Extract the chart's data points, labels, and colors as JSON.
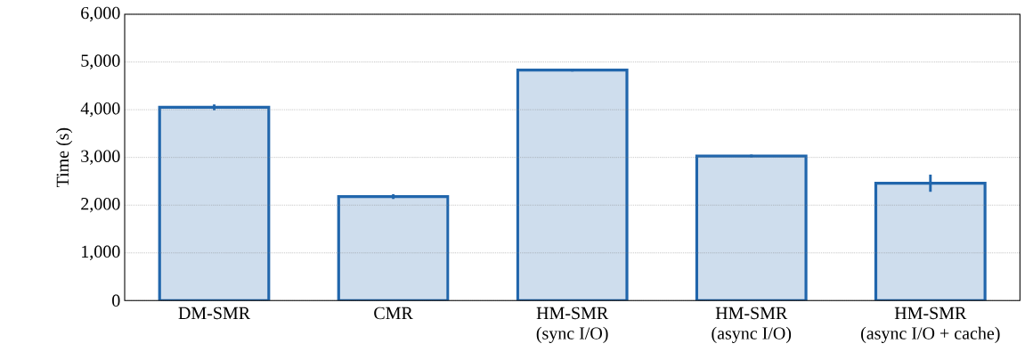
{
  "chart_data": {
    "type": "bar",
    "ylabel": "Time (s)",
    "categories": [
      "DM-SMR",
      "CMR",
      "HM-SMR\n(sync I/O)",
      "HM-SMR\n(async I/O)",
      "HM-SMR\n(async I/O + cache)"
    ],
    "values": [
      4050,
      2180,
      4830,
      3030,
      2460
    ],
    "errors": [
      60,
      50,
      30,
      30,
      180
    ],
    "color": "#2166ac",
    "ylim": [
      0,
      6000
    ],
    "yticks": [
      {
        "value": 0,
        "label": "0"
      },
      {
        "value": 1000,
        "label": "1,000"
      },
      {
        "value": 2000,
        "label": "2,000"
      },
      {
        "value": 3000,
        "label": "3,000"
      },
      {
        "value": 4000,
        "label": "4,000"
      },
      {
        "value": 5000,
        "label": "5,000"
      },
      {
        "value": 6000,
        "label": "6,000"
      }
    ],
    "grid": "y"
  }
}
